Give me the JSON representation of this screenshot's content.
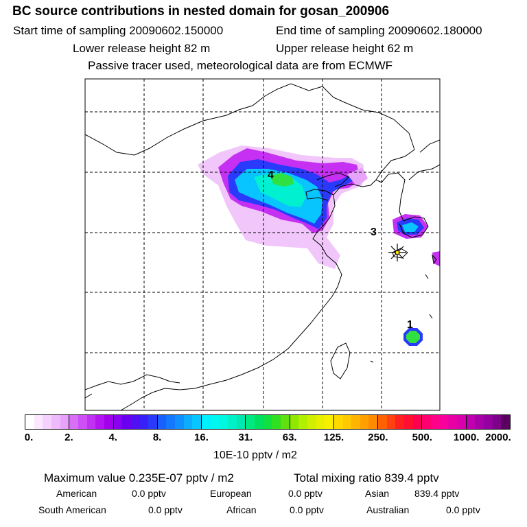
{
  "header": {
    "title": "BC  source contributions in nested domain for gosan_200906",
    "start_time": "Start time of sampling 20090602.150000",
    "end_time": "End time of sampling 20090602.180000",
    "lower_release": "Lower release height   82 m",
    "upper_release": "Upper release height   62 m",
    "tracer_note": "Passive tracer used, meteorological data are from ECMWF"
  },
  "map": {
    "labels": [
      {
        "text": "4"
      },
      {
        "text": "3"
      },
      {
        "text": "1"
      }
    ],
    "receptor_marker": "asterisk-star"
  },
  "colorbar": {
    "unit": "10E-10 pptv / m2",
    "ticks": [
      "0.",
      "2.",
      "4.",
      "8.",
      "16.",
      "31.",
      "63.",
      "125.",
      "250.",
      "500.",
      "1000.",
      "2000."
    ],
    "segments": [
      [
        "#ffffff",
        "#fbe8fe",
        "#f5d1fd",
        "#eebafc",
        "#e7a2fa"
      ],
      [
        "#d96ff7",
        "#cd4ff5",
        "#c230f2",
        "#b414ef",
        "#a300eb"
      ],
      [
        "#8a00f0",
        "#6a00f0",
        "#5010f5",
        "#3a20f8",
        "#2a3afa"
      ],
      [
        "#1a60ff",
        "#1478ff",
        "#1090ff",
        "#0cacff",
        "#08c4ff"
      ],
      [
        "#00f0ff",
        "#00f8f0",
        "#00f8e0",
        "#00f0c8",
        "#00e8b0"
      ],
      [
        "#00e880",
        "#00e060",
        "#10e040",
        "#30e020",
        "#60e010"
      ],
      [
        "#90e800",
        "#b0f000",
        "#d0f000",
        "#e8f000",
        "#f8f000"
      ],
      [
        "#ffd800",
        "#ffc800",
        "#ffb400",
        "#ffa000",
        "#ff8c00"
      ],
      [
        "#ff6000",
        "#ff4010",
        "#ff2020",
        "#ff1030",
        "#ff0050"
      ],
      [
        "#ff0070",
        "#ff0088",
        "#f8009c",
        "#e800a4",
        "#d800ac"
      ],
      [
        "#c000b0",
        "#a800a8",
        "#9400a0",
        "#7c0088",
        "#5a0060"
      ]
    ]
  },
  "summary": {
    "maximum": "Maximum value  0.235E-07 pptv / m2",
    "total": "Total mixing ratio      839.4 pptv"
  },
  "contributions": [
    {
      "label": "American",
      "value": "0.0 pptv"
    },
    {
      "label": "European",
      "value": "0.0 pptv"
    },
    {
      "label": "Asian",
      "value": "839.4 pptv"
    },
    {
      "label": "South American",
      "value": "0.0 pptv"
    },
    {
      "label": "African",
      "value": "0.0 pptv"
    },
    {
      "label": "Australian",
      "value": "0.0 pptv"
    }
  ]
}
